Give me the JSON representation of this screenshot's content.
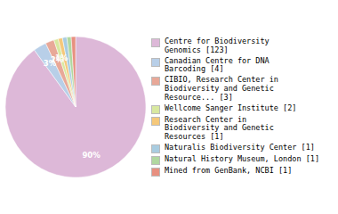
{
  "chart_data": {
    "type": "pie",
    "categories": [
      "Centre for Biodiversity\nGenomics [123]",
      "Canadian Centre for DNA\nBarcoding [4]",
      "CIBIO, Research Center in\nBiodiversity and Genetic\nResource... [3]",
      "Wellcome Sanger Institute [2]",
      "Research Center in\nBiodiversity and Genetic\nResources [1]",
      "Naturalis Biodiversity Center [1]",
      "Natural History Museum, London [1]",
      "Mined from GenBank, NCBI [1]"
    ],
    "values": [
      90,
      3,
      2,
      1,
      1,
      1,
      1,
      1
    ],
    "value_labels": [
      "90%",
      "3%",
      "2%",
      "1%",
      null,
      null,
      null,
      null
    ],
    "colors": [
      "#ddb8d8",
      "#b8cfe8",
      "#e8a898",
      "#d8e8a0",
      "#f5c87a",
      "#a8cce0",
      "#b0d8a0",
      "#e89080"
    ],
    "data_labels": true,
    "legend": "right"
  }
}
